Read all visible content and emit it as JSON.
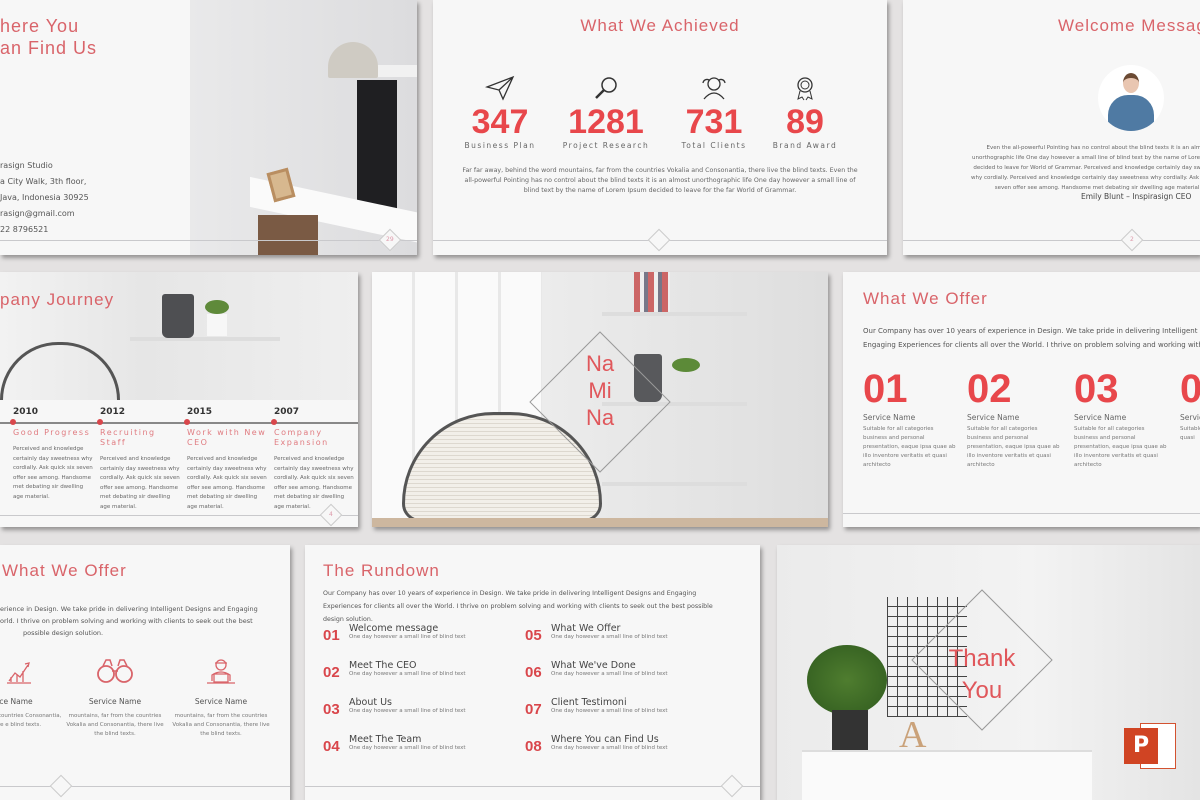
{
  "find_us": {
    "title_lines": [
      "here You",
      "an Find Us"
    ],
    "address": [
      "rasign Studio",
      "a City Walk, 3th floor,",
      "Java, Indonesia 30925",
      "rasign@gmail.com",
      "22 8796521"
    ],
    "page": "29"
  },
  "achieved": {
    "title": "What We Achieved",
    "stats": [
      {
        "value": "347",
        "label": "Business Plan",
        "icon": "paper-plane-icon"
      },
      {
        "value": "1281",
        "label": "Project Research",
        "icon": "magnifier-icon"
      },
      {
        "value": "731",
        "label": "Total Clients",
        "icon": "users-icon"
      },
      {
        "value": "89",
        "label": "Brand Award",
        "icon": "award-icon"
      }
    ],
    "body": "Far far away, behind the word mountains, far from the countries Vokalia and Consonantia, there live the blind texts. Even the all-powerful Pointing has no control about the blind texts it is an almost unorthographic life One day however a small line of blind text by the name of Lorem Ipsum decided to leave for the far World of Grammar."
  },
  "welcome": {
    "title": "Welcome Message",
    "body": "Even the all-powerful Pointing has no control about the blind texts it is an almost unorthographic life One day however a small line of blind text by the name of Lorem Ipsum decided to leave for World of Grammar. Perceived and knowledge certainly day sweetness why cordially. Perceived and knowledge certainly day sweetness why cordially. Ask quick six seven offer see among. Handsome met debating sir dwelling age material.",
    "signature": "Emily Blunt – Inspirasign CEO",
    "page": "2"
  },
  "journey": {
    "title": "pany Journey",
    "items": [
      {
        "year": "2010",
        "heading": "Good Progress",
        "text": "Perceived and knowledge certainly day sweetness why cordially. Ask quick six seven offer see among. Handsome met debating sir dwelling age material."
      },
      {
        "year": "2012",
        "heading": "Recruiting Staff",
        "text": "Perceived and knowledge certainly day sweetness why cordially. Ask quick six seven offer see among. Handsome met debating sir dwelling age material."
      },
      {
        "year": "2015",
        "heading": "Work with New CEO",
        "text": "Perceived and knowledge certainly day sweetness why cordially. Ask quick six seven offer see among. Handsome met debating sir dwelling age material."
      },
      {
        "year": "2007",
        "heading": "Company Expansion",
        "text": "Perceived and knowledge certainly day sweetness why cordially. Ask quick six seven offer see among. Handsome met debating sir dwelling age material."
      }
    ],
    "page": "4"
  },
  "cover": {
    "lines": [
      "Na",
      "Mi",
      "Na"
    ]
  },
  "offer_numbers": {
    "title": "What We Offer",
    "intro": "Our Company has over 10 years of experience in Design. We take pride in delivering Intelligent Designs and Engaging Experiences for clients all over the World. I thrive on problem solving and working with clients to",
    "items": [
      {
        "num": "01",
        "name": "Service Name",
        "text": "Suitable for all categories business and personal presentation, eaque ipsa quae ab illo inventore veritatis et quasi architecto"
      },
      {
        "num": "02",
        "name": "Service Name",
        "text": "Suitable for all categories business and personal presentation, eaque ipsa quae ab illo inventore veritatis et quasi architecto"
      },
      {
        "num": "03",
        "name": "Service Name",
        "text": "Suitable for all categories business and personal presentation, eaque ipsa quae ab illo inventore veritatis et quasi architecto"
      },
      {
        "num": "0",
        "name": "Servic",
        "text": "Suitable and pers ipsa qua et quasi"
      }
    ]
  },
  "offer_icons": {
    "title": "What We Offer",
    "intro_lines": [
      "erience in Design. We take pride in delivering Intelligent Designs and Engaging",
      "orld. I thrive on problem solving and working with clients to seek out the best",
      "possible design solution."
    ],
    "items": [
      {
        "name": "ice Name",
        "text": "r from the countries Consonantia, there e blind texts.",
        "icon": "growth-chart-icon"
      },
      {
        "name": "Service Name",
        "text": "mountains, far from the countries Vokalia and Consonantia, there live the blind texts.",
        "icon": "binoculars-icon"
      },
      {
        "name": "Service Name",
        "text": "mountains, far from the countries Vokalia and Consonantia, there live the blind texts.",
        "icon": "worker-laptop-icon"
      }
    ]
  },
  "rundown": {
    "title": "The Rundown",
    "intro": "Our Company has over 10 years of experience in Design. We take pride in delivering Intelligent Designs and Engaging Experiences for clients all over the World. I thrive on problem solving and working with clients to seek out the best possible design solution.",
    "items": [
      {
        "num": "01",
        "title": "Welcome message",
        "sub": "One day however a small line of blind text"
      },
      {
        "num": "02",
        "title": "Meet The CEO",
        "sub": "One day however a small line of blind text"
      },
      {
        "num": "03",
        "title": "About Us",
        "sub": "One day however a small line of blind text"
      },
      {
        "num": "04",
        "title": "Meet The Team",
        "sub": "One day however a small line of blind text"
      },
      {
        "num": "05",
        "title": "What We Offer",
        "sub": "One day however a small line of blind text"
      },
      {
        "num": "06",
        "title": "What We've Done",
        "sub": "One day however a small line of blind text"
      },
      {
        "num": "07",
        "title": "Client Testimoni",
        "sub": "One day however a small line of blind text"
      },
      {
        "num": "08",
        "title": "Where You can Find Us",
        "sub": "One day however a small line of blind text"
      }
    ]
  },
  "thanks": {
    "lines": [
      "Thank",
      "You"
    ],
    "badge": "P"
  },
  "colors": {
    "accent": "#e8474b",
    "title": "#d9646a",
    "background": "#e4e2e2"
  }
}
